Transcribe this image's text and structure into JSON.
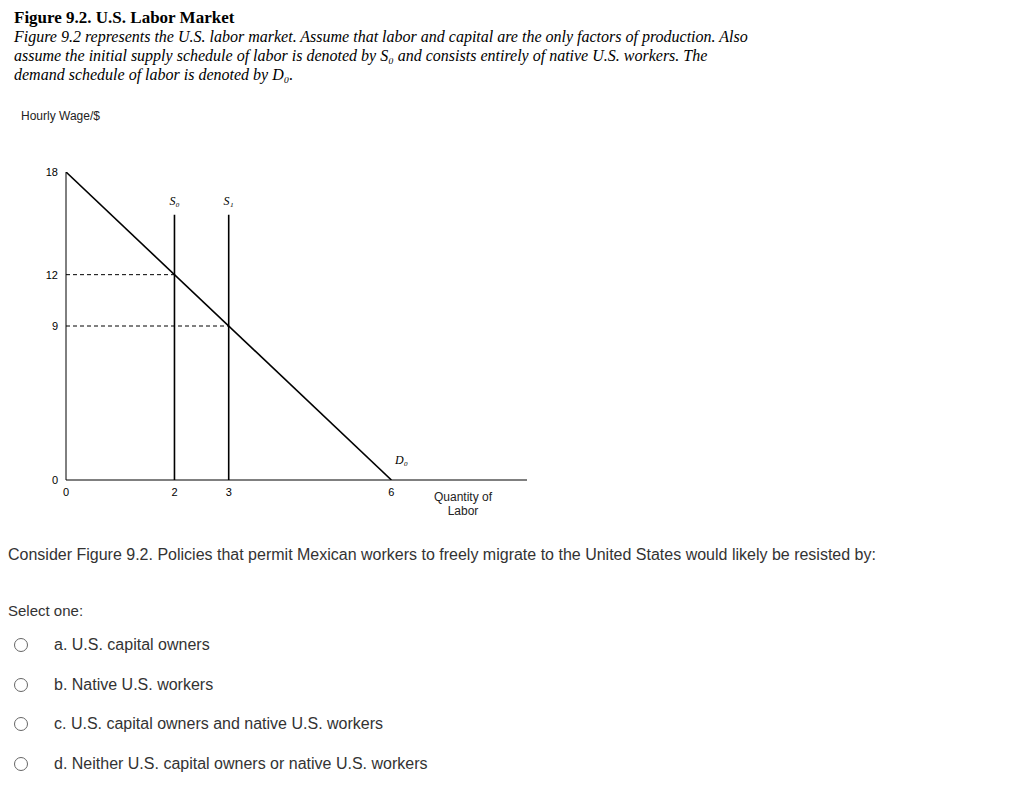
{
  "figure": {
    "title": "Figure 9.2. U.S. Labor Market",
    "caption": "Figure 9.2 represents the U.S. labor market. Assume that labor and capital are the only factors of production. Also assume the initial supply schedule of labor is denoted by S₀ and consists entirely of native U.S. workers. The demand schedule of labor is denoted by D₀."
  },
  "chart_data": {
    "type": "line",
    "y_label": "Hourly Wage/$",
    "x_label": "Quantity of Labor",
    "xlim": [
      0,
      8.5
    ],
    "xticks": [
      0,
      2,
      3,
      6
    ],
    "ylim": [
      0,
      18
    ],
    "yticks": [
      0,
      9,
      12,
      18
    ],
    "grid": false,
    "series": [
      {
        "name": "D₀",
        "color": "#000000",
        "line_style": "solid",
        "x": [
          0,
          6
        ],
        "values": [
          18,
          0
        ]
      },
      {
        "name": "S₀",
        "color": "#000000",
        "line_style": "solid",
        "x": [
          2,
          2
        ],
        "values": [
          0,
          15.5
        ]
      },
      {
        "name": "S₁",
        "color": "#000000",
        "line_style": "solid",
        "x": [
          3,
          3
        ],
        "values": [
          0,
          15.5
        ]
      },
      {
        "color": "#000000",
        "line_style": "dashed",
        "x": [
          0,
          2
        ],
        "values": [
          12,
          12
        ]
      },
      {
        "color": "#000000",
        "line_style": "dashed",
        "x": [
          0,
          3
        ],
        "values": [
          9,
          9
        ]
      }
    ]
  },
  "question": {
    "text": "Consider Figure 9.2. Policies that permit Mexican workers to freely migrate to the United States would likely be resisted by:",
    "prompt": "Select one:",
    "options": [
      "a. U.S. capital owners",
      "b. Native U.S. workers",
      "c. U.S. capital owners and native U.S. workers",
      "d. Neither U.S. capital owners or native U.S. workers"
    ]
  }
}
